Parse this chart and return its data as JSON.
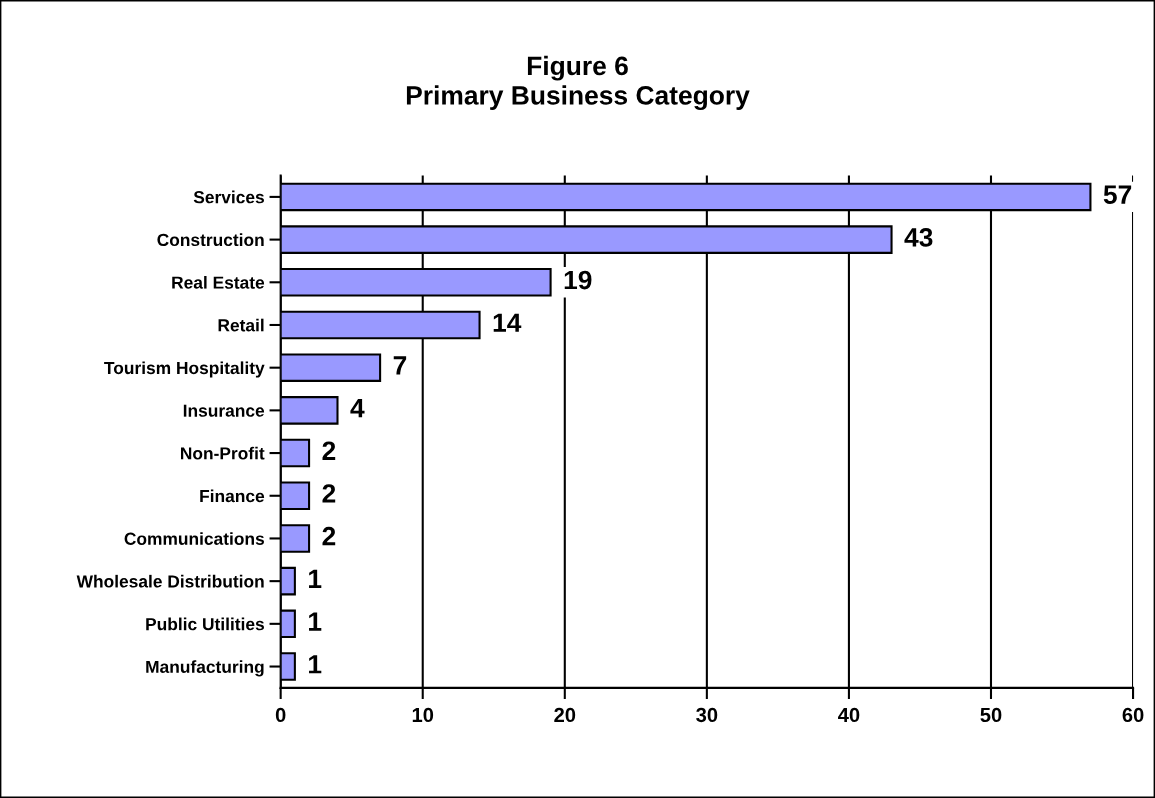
{
  "chart_data": {
    "type": "bar",
    "orientation": "horizontal",
    "title": "Figure 6\nPrimary Business Category",
    "categories": [
      "Services",
      "Construction",
      "Real Estate",
      "Retail",
      "Tourism Hospitality",
      "Insurance",
      "Non-Profit",
      "Finance",
      "Communications",
      "Wholesale Distribution",
      "Public Utilities",
      "Manufacturing"
    ],
    "values": [
      57,
      43,
      19,
      14,
      7,
      4,
      2,
      2,
      2,
      1,
      1,
      1
    ],
    "color": "#9999ff",
    "xlim": [
      0,
      60
    ],
    "xticks": [
      0,
      10,
      20,
      30,
      40,
      50,
      60
    ],
    "grid": "x",
    "data_labels": true,
    "legend": false
  }
}
